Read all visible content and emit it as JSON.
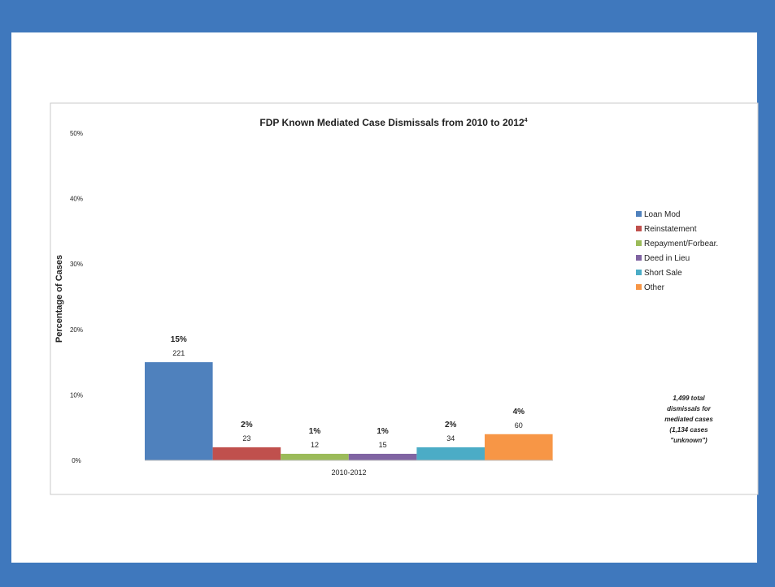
{
  "chart_data": {
    "type": "bar",
    "title": "FDP Known Mediated Case Dismissals from 2010 to 2012",
    "title_superscript": "4",
    "ylabel": "Percentage of Cases",
    "xlabel": "",
    "x_category": "2010-2012",
    "ylim": [
      0,
      50
    ],
    "yticks": [
      "0%",
      "10%",
      "20%",
      "30%",
      "40%",
      "50%"
    ],
    "grid": false,
    "legend_position": "right",
    "series": [
      {
        "name": "Loan Mod",
        "value": 15,
        "label_pct": "15%",
        "count": "221",
        "color": "#4f81bd"
      },
      {
        "name": "Reinstatement",
        "value": 2,
        "label_pct": "2%",
        "count": "23",
        "color": "#c0504d"
      },
      {
        "name": "Repayment/Forbear.",
        "value": 1,
        "label_pct": "1%",
        "count": "12",
        "color": "#9bbb59"
      },
      {
        "name": "Deed in Lieu",
        "value": 1,
        "label_pct": "1%",
        "count": "15",
        "color": "#8064a2"
      },
      {
        "name": "Short Sale",
        "value": 2,
        "label_pct": "2%",
        "count": "34",
        "color": "#4bacc6"
      },
      {
        "name": "Other",
        "value": 4,
        "label_pct": "4%",
        "count": "60",
        "color": "#f79646"
      }
    ],
    "annotation": [
      "1,499 total",
      "dismissals for",
      "mediated cases",
      "(1,134 cases",
      "\"unknown\")"
    ]
  }
}
